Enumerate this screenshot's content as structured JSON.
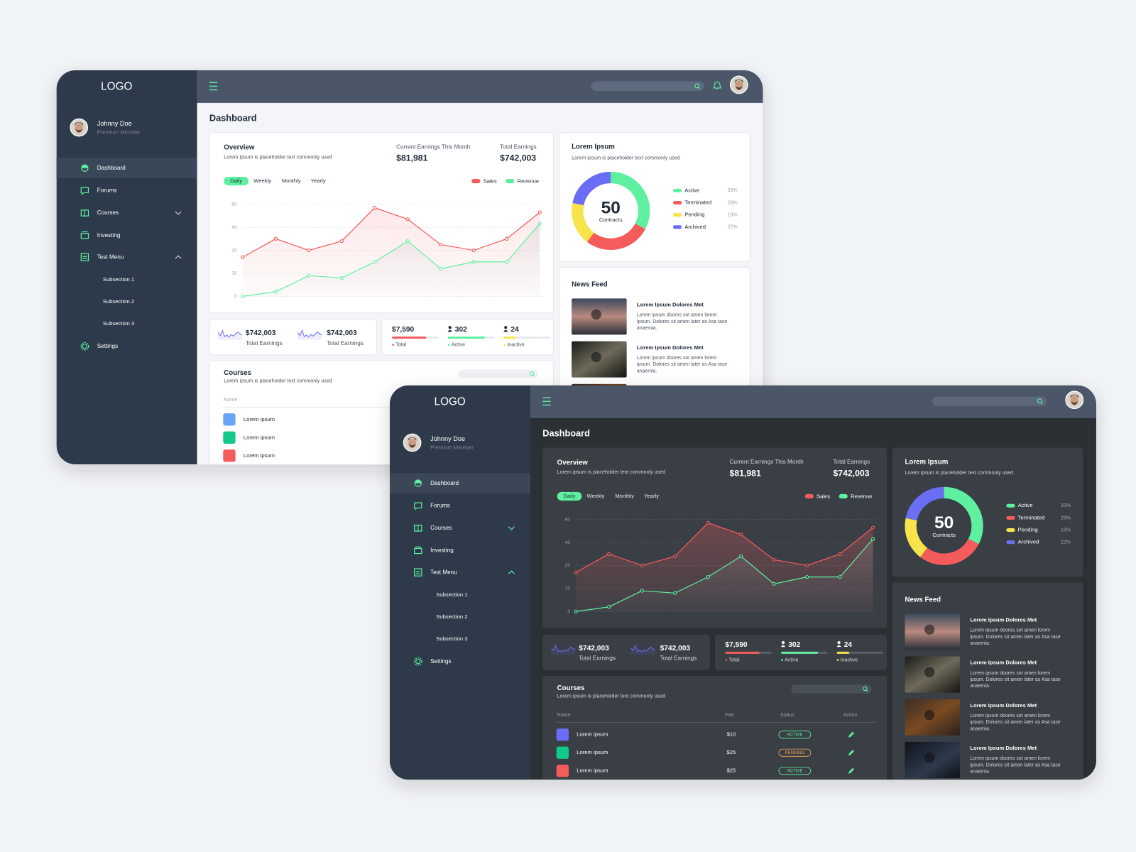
{
  "sidebar": {
    "logo": "LOGO",
    "user_name": "Johnny Doe",
    "user_role": "Premium Member",
    "menu": [
      "Dashboard",
      "Forums",
      "Courses",
      "Investing",
      "Test Menu"
    ],
    "submenu": [
      "Subsection 1",
      "Subsection 2",
      "Subsection 3"
    ],
    "settings": "Settings"
  },
  "page_title": "Dashboard",
  "overview": {
    "title": "Overview",
    "subtitle": "Lorem ipsum is placeholder text commonly used",
    "current_earnings_label": "Current Earnings This Month",
    "current_earnings": "$81,981",
    "total_earnings_label": "Total Earnings",
    "total_earnings": "$742,003",
    "tabs": [
      "Daily",
      "Weekly",
      "Monthly",
      "Yearly"
    ]
  },
  "chart_data": [
    {
      "type": "line",
      "series": [
        {
          "name": "Sales",
          "color": "#f45b5b",
          "values": [
            17,
            30,
            20,
            28,
            57,
            47,
            25,
            20,
            30,
            53
          ]
        },
        {
          "name": "Revenue",
          "color": "#5ef0a0",
          "values": [
            0,
            2,
            9,
            8,
            15,
            28,
            12,
            15,
            15,
            43
          ]
        }
      ],
      "ylim": [
        0,
        60
      ],
      "yticks": [
        0,
        10,
        20,
        40,
        60
      ],
      "grid": true
    },
    {
      "type": "pie",
      "title": "Lorem Ipsum",
      "subtitle": "Lorem ipsum is placeholder text commonly used",
      "center_value": 50,
      "center_label": "Contracts",
      "categories": [
        "Active",
        "Terminated",
        "Pending",
        "Archived"
      ],
      "values": [
        33,
        28,
        18,
        22
      ],
      "value_labels": [
        "33%",
        "28%",
        "18%",
        "22%"
      ],
      "colors": [
        "#5ef0a0",
        "#f45b5b",
        "#f7e44a",
        "#6b6ef5"
      ]
    }
  ],
  "earnings_cards": [
    {
      "value": "$742,003",
      "label": "Total Earnings"
    },
    {
      "value": "$742,003",
      "label": "Total Earnings"
    }
  ],
  "counts": [
    {
      "value": "$7,590",
      "label": "Total"
    },
    {
      "value": "302",
      "label": "Active"
    },
    {
      "value": "24",
      "label": "Inactive"
    }
  ],
  "courses": {
    "title": "Courses",
    "subtitle": "Lorem ipsum is placeholder text commonly used",
    "columns": [
      "Name",
      "Fee",
      "Status",
      "Action"
    ],
    "rows": [
      [
        "Lorem ipsum",
        "$10",
        "ACTIVE"
      ],
      [
        "Lorem ipsum",
        "$25",
        "PENDING"
      ],
      [
        "Lorem ipsum",
        "$25",
        "ACTIVE"
      ]
    ]
  },
  "news": {
    "title": "News Feed",
    "items": [
      {
        "title": "Lorem Ipsum Dolores Met",
        "body": [
          "Lorem ipsum doores sot amen lorem",
          "ipsum. Dolores sit amen later as Asa tase",
          "anaemia."
        ]
      },
      {
        "title": "Lorem Ipsum Dolores Met",
        "body": [
          "Lorem ipsum doores sot amen lorem",
          "ipsum. Dolores sit amen later as Asa tase",
          "anaemia."
        ]
      },
      {
        "title": "Lorem Ipsum Dolores Met",
        "body": [
          "Lorem ipsum doores sot amen lorem",
          "ipsum. Dolores sit amen later as Asa tase",
          "anaemia."
        ]
      },
      {
        "title": "Lorem Ipsum Dolores Met",
        "body": [
          "Lorem ipsum doores sot amen lorem",
          "ipsum. Dolores sit amen later as Asa tase",
          "anaemia."
        ]
      }
    ]
  }
}
